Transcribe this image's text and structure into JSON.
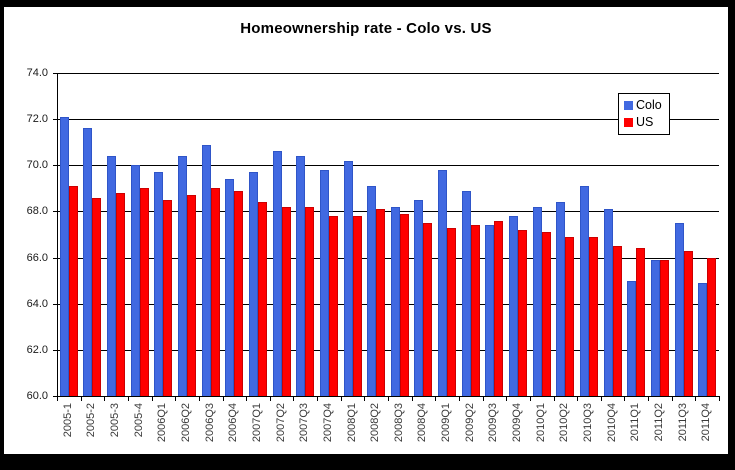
{
  "window": {
    "title": "Homeownership rate - Colo vs. US"
  },
  "chart_data": {
    "type": "bar",
    "title": "Homeownership rate - Colo vs. US",
    "xlabel": "",
    "ylabel": "",
    "categories": [
      "2005-1",
      "2005-2",
      "2005-3",
      "2005-4",
      "2006Q1",
      "2006Q2",
      "2006Q3",
      "2006Q4",
      "2007Q1",
      "2007Q2",
      "2007Q3",
      "2007Q4",
      "2008Q1",
      "2008Q2",
      "2008Q3",
      "2008Q4",
      "2009Q1",
      "2009Q2",
      "2009Q3",
      "2009Q4",
      "2010Q1",
      "2010Q2",
      "2010Q3",
      "2010Q4",
      "2011Q1",
      "2011Q2",
      "2011Q3",
      "2011Q4"
    ],
    "series": [
      {
        "name": "Colo",
        "color": "#4169E1",
        "edge": "#2F55C8",
        "values": [
          72.1,
          71.6,
          70.4,
          70.0,
          69.7,
          70.4,
          70.9,
          69.4,
          69.7,
          70.6,
          70.4,
          69.8,
          70.2,
          69.1,
          68.2,
          68.5,
          69.8,
          68.9,
          67.4,
          67.8,
          68.2,
          68.4,
          69.1,
          68.1,
          65.0,
          65.9,
          67.5,
          64.9
        ]
      },
      {
        "name": "US",
        "color": "#FF0000",
        "edge": "#CC0000",
        "values": [
          69.1,
          68.6,
          68.8,
          69.0,
          68.5,
          68.7,
          69.0,
          68.9,
          68.4,
          68.2,
          68.2,
          67.8,
          67.8,
          68.1,
          67.9,
          67.5,
          67.3,
          67.4,
          67.6,
          67.2,
          67.1,
          66.9,
          66.9,
          66.5,
          66.4,
          65.9,
          66.3,
          66.0
        ]
      }
    ],
    "ylim": [
      60.0,
      74.0
    ],
    "ytick_step": 2.0,
    "ytick_labels": [
      "60.0",
      "62.0",
      "64.0",
      "66.0",
      "68.0",
      "70.0",
      "72.0",
      "74.0"
    ],
    "grid": true,
    "legend_position": "top-right",
    "colors": {
      "colo_bar": "#4169E1",
      "us_bar": "#FF0000",
      "gridline": "#000000",
      "frame_border": "#000000",
      "background": "#FFFFFF",
      "title_text": "#000000"
    }
  }
}
